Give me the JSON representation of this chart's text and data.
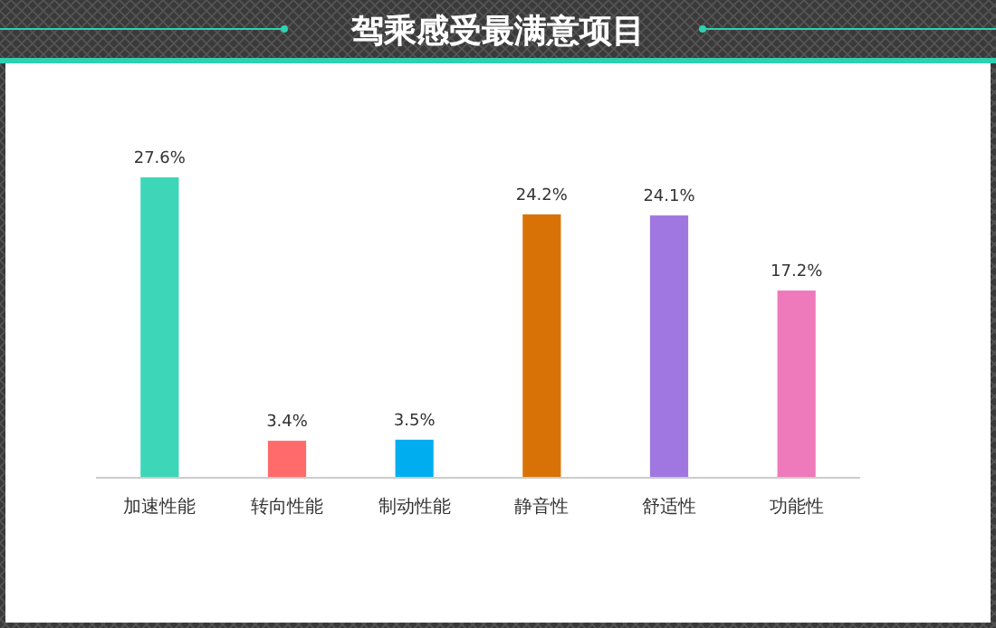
{
  "chart_data": {
    "type": "bar",
    "title": "驾乘感受最满意项目",
    "categories": [
      "加速性能",
      "转向性能",
      "制动性能",
      "静音性",
      "舒适性",
      "功能性"
    ],
    "values": [
      27.6,
      3.4,
      3.5,
      24.2,
      24.1,
      17.2
    ],
    "colors": [
      "#3dd6b8",
      "#ff6b6b",
      "#00aeef",
      "#d97206",
      "#a077e0",
      "#ee79bb"
    ],
    "value_labels": [
      "27.6%",
      "3.4%",
      "3.5%",
      "24.2%",
      "24.1%",
      "17.2%"
    ]
  }
}
